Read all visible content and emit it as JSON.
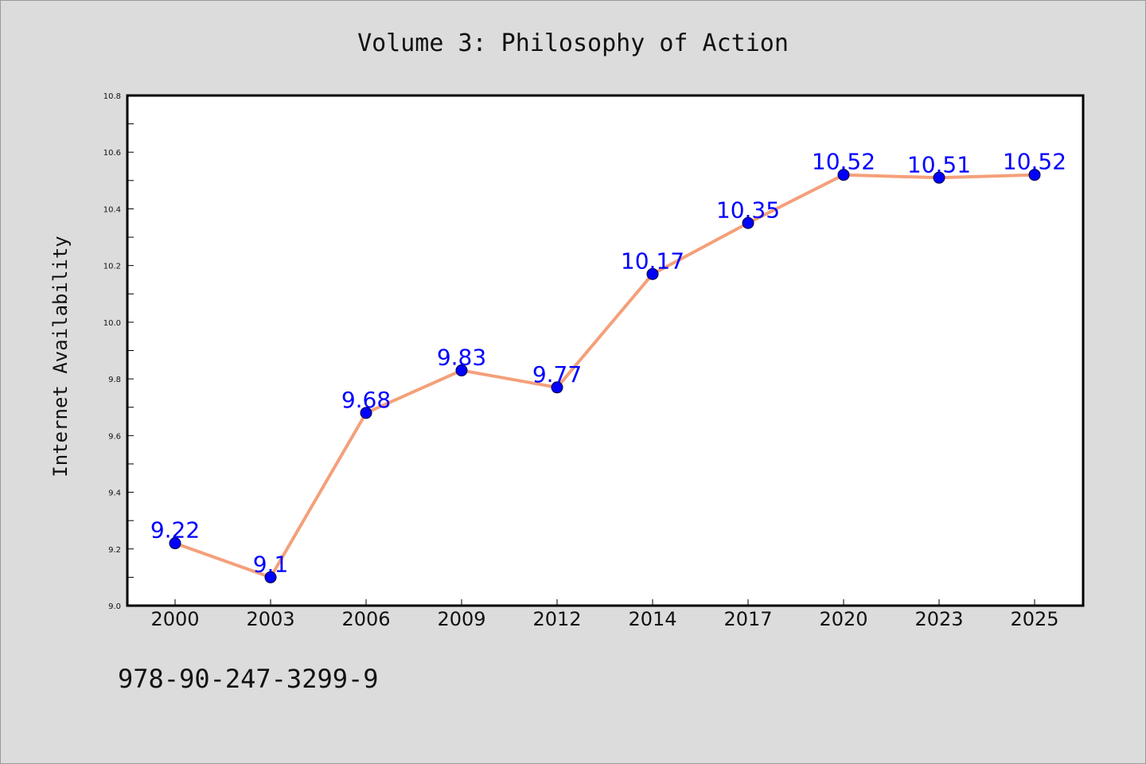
{
  "chart_data": {
    "type": "line",
    "title": "Volume 3: Philosophy of Action",
    "xlabel": "",
    "ylabel": "Internet Availability",
    "categories": [
      "2000",
      "2003",
      "2006",
      "2009",
      "2012",
      "2014",
      "2017",
      "2020",
      "2023",
      "2025"
    ],
    "series": [
      {
        "values": [
          9.22,
          9.1,
          9.68,
          9.83,
          9.77,
          10.17,
          10.35,
          10.52,
          10.51,
          10.52
        ],
        "labels": [
          "9.22",
          "9.1",
          "9.68",
          "9.83",
          "9.77",
          "10.17",
          "10.35",
          "10.52",
          "10.51",
          "10.52"
        ],
        "line_color": "#f4a07a",
        "marker_color": "#0000ff"
      }
    ],
    "ylim": [
      9.0,
      10.8
    ],
    "yticks": [
      "9.0",
      "9.2",
      "9.4",
      "9.6",
      "9.8",
      "10.0",
      "10.2",
      "10.4",
      "10.6",
      "10.8"
    ],
    "grid": false,
    "legend": "none",
    "footer_text": "978-90-247-3299-9"
  },
  "colors": {
    "background": "#dcdcdc",
    "plot_area": "#ffffff",
    "data_label": "#0000ff"
  }
}
